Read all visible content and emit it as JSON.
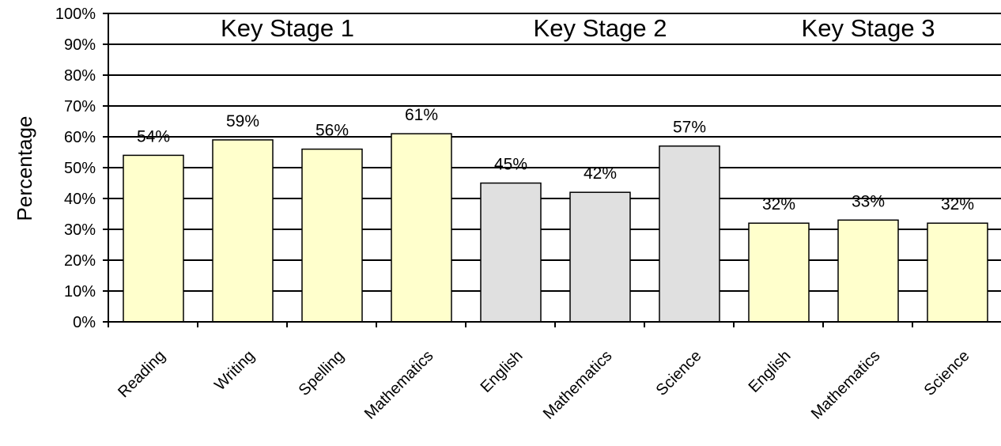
{
  "chart_data": {
    "type": "bar",
    "ylabel": "Percentage",
    "ylim": [
      0,
      100
    ],
    "yticks": [
      "0%",
      "10%",
      "20%",
      "30%",
      "40%",
      "50%",
      "60%",
      "70%",
      "80%",
      "90%",
      "100%"
    ],
    "grid": true,
    "groups": [
      {
        "label": "Key Stage 1",
        "color": "#FFFFCC",
        "categories": [
          "Reading",
          "Writing",
          "Spelling",
          "Mathematics"
        ],
        "values": [
          54,
          59,
          56,
          61
        ],
        "value_labels": [
          "54%",
          "59%",
          "56%",
          "61%"
        ]
      },
      {
        "label": "Key Stage 2",
        "color": "#E0E0E0",
        "categories": [
          "English",
          "Mathematics",
          "Science"
        ],
        "values": [
          45,
          42,
          57
        ],
        "value_labels": [
          "45%",
          "42%",
          "57%"
        ]
      },
      {
        "label": "Key Stage 3",
        "color": "#FFFFCC",
        "categories": [
          "English",
          "Mathematics",
          "Science"
        ],
        "values": [
          32,
          33,
          32
        ],
        "value_labels": [
          "32%",
          "33%",
          "32%"
        ]
      }
    ]
  }
}
